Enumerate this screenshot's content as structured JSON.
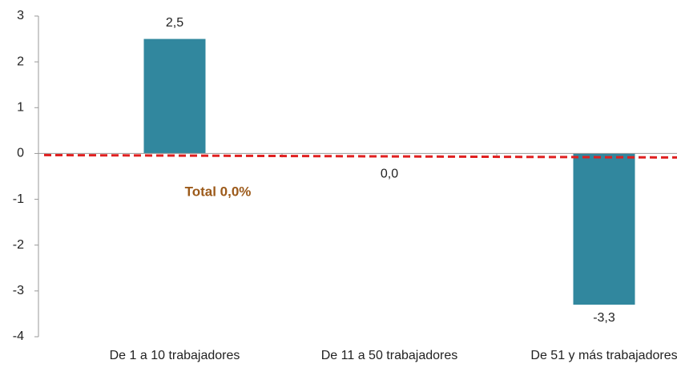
{
  "chart_data": {
    "type": "bar",
    "categories": [
      "De 1 a 10 trabajadores",
      "De 11 a 50 trabajadores",
      "De 51 y más trabajadores"
    ],
    "values": [
      2.5,
      0.0,
      -3.3
    ],
    "value_labels": [
      "2,5",
      "0,0",
      "-3,3"
    ],
    "color": "#31879e",
    "ylim": [
      -4,
      3
    ],
    "yticks": [
      -4,
      -3,
      -2,
      -1,
      0,
      1,
      2,
      3
    ],
    "reference_line": {
      "value": 0,
      "label": "Total  0,0%",
      "color": "#e02020",
      "label_color": "#9c5a1a"
    }
  }
}
